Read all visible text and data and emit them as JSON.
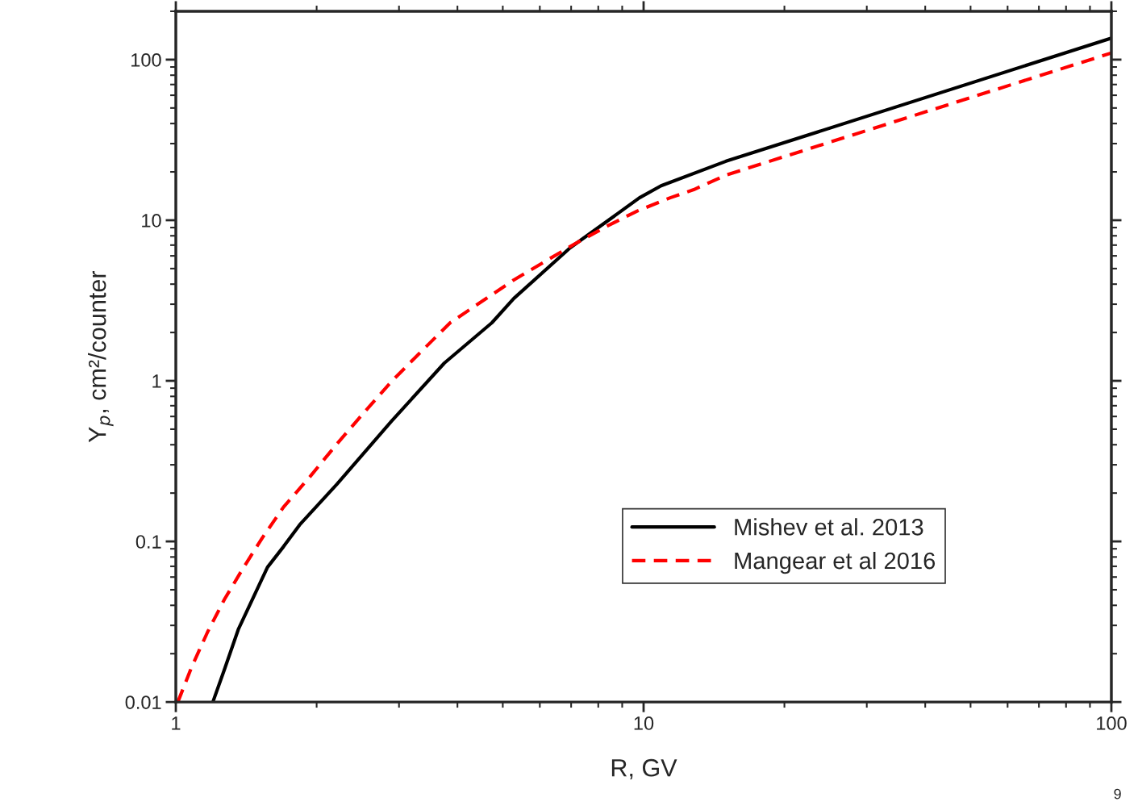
{
  "chart_data": {
    "type": "line",
    "xlabel": "R, GV",
    "ylabel": "Y$_{p}$, cm²/counter",
    "annotations": [
      "9"
    ],
    "series": [
      {
        "name": "Mishev et al. 2013",
        "color": "#000000",
        "line_style": "solid",
        "x": [
          1.2,
          1.27,
          1.36,
          1.46,
          1.57,
          1.7,
          1.84,
          2.21,
          2.89,
          3.75,
          4.74,
          5.28,
          6.97,
          8.17,
          9.8,
          10.9,
          15.0,
          100
        ],
        "values": [
          0.01,
          0.0159,
          0.0283,
          0.044,
          0.069,
          0.093,
          0.127,
          0.227,
          0.56,
          1.29,
          2.3,
          3.26,
          6.75,
          9.4,
          13.8,
          16.4,
          23.3,
          136
        ]
      },
      {
        "name": "Mangear et al 2016",
        "color": "#ff0000",
        "line_style": "dashed",
        "x": [
          1.01,
          1.08,
          1.17,
          1.27,
          1.39,
          1.53,
          1.7,
          1.94,
          2.21,
          2.52,
          2.89,
          3.33,
          3.86,
          5.28,
          7.14,
          8.36,
          9.69,
          11.4,
          12.8,
          15.0,
          100
        ],
        "values": [
          0.01,
          0.0164,
          0.0274,
          0.0435,
          0.0675,
          0.105,
          0.164,
          0.255,
          0.405,
          0.63,
          0.99,
          1.5,
          2.3,
          4.25,
          7.15,
          9.2,
          11.4,
          13.8,
          15.5,
          19.1,
          110
        ]
      }
    ],
    "log": "xy",
    "xlim": [
      1,
      100
    ],
    "xticks": [
      1,
      10,
      100
    ],
    "ylim": [
      0.01,
      200
    ],
    "yticks": [
      0.01,
      0.1,
      1,
      10,
      100
    ],
    "grid": false,
    "legend": "lower right"
  }
}
